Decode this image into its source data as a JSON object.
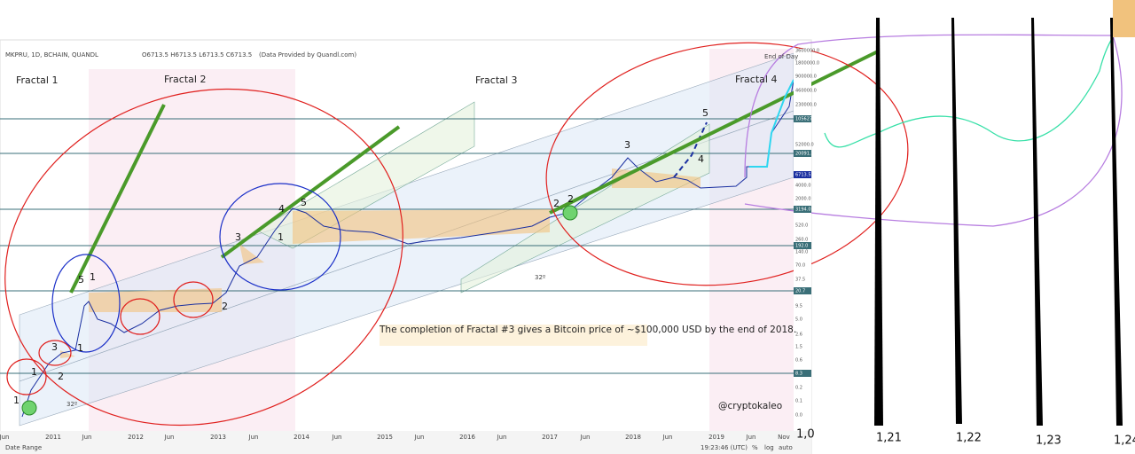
{
  "header": {
    "symbol": "MKPRU, 1D, BCHAIN, QUANDL",
    "ohlc": "O6713.5 H6713.5 L6713.5 C6713.5",
    "provider": "(Data Provided by Quandl.com)",
    "end_of_day": "End of Day"
  },
  "fractal_labels": [
    "Fractal 1",
    "Fractal 2",
    "Fractal 3",
    "Fractal 4"
  ],
  "wave_labels": [
    "1",
    "3",
    "2",
    "5",
    "1",
    "2",
    "3",
    "4",
    "5",
    "1",
    "2",
    "2",
    "3",
    "4",
    "5",
    "1",
    "1"
  ],
  "angle_labels": [
    "32º",
    "32º"
  ],
  "annotation": "The completion of Fractal #3 gives a Bitcoin price of ~$100,000 USD by the end of 2018.",
  "watermark": "@cryptokaleo",
  "price_axis": [
    "3600000.0",
    "1800000.0",
    "900000.0",
    "460000.0",
    "230000.0",
    "105627.6",
    "52000.0",
    "20091.3",
    "6713.5",
    "4000.0",
    "2000.0",
    "3194.0",
    "520.0",
    "260.0",
    "192.0",
    "140.0",
    "70.0",
    "37.5",
    "20.7",
    "9.5",
    "5.0",
    "2.6",
    "1.5",
    "0.6",
    "8.3",
    "0.2",
    "0.1",
    "0.0"
  ],
  "time_axis": [
    "Jun",
    "2011",
    "Jun",
    "2012",
    "Jun",
    "2013",
    "Jun",
    "2014",
    "Jun",
    "2015",
    "Jun",
    "2016",
    "Jun",
    "2017",
    "Jun",
    "2018",
    "Jun",
    "2019",
    "Jun",
    "Nov"
  ],
  "status_bar": {
    "date_range": "Date Range",
    "time": "19:23:46 (UTC)",
    "percent": "%",
    "log": "log",
    "auto": "auto"
  },
  "handwritten": [
    "1,0",
    "1,21",
    "1,22",
    "1,23",
    "1,24"
  ]
}
